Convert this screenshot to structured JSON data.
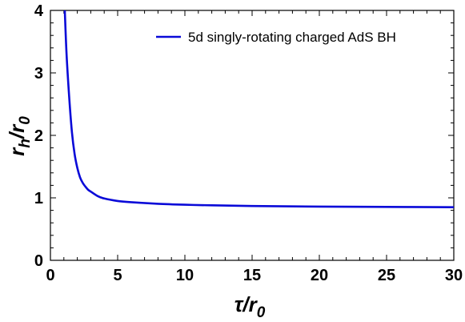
{
  "chart_data": {
    "type": "line",
    "title": "",
    "xlabel": {
      "main": "τ/r",
      "sub": "0"
    },
    "ylabel": {
      "main": "r",
      "sub1": "h",
      "mid": "/r",
      "sub2": "0"
    },
    "xlim": [
      0,
      30
    ],
    "ylim": [
      0,
      4
    ],
    "xticks": [
      0,
      5,
      10,
      15,
      20,
      25,
      30
    ],
    "yticks": [
      0,
      1,
      2,
      3,
      4
    ],
    "xtick_labels": [
      "0",
      "5",
      "10",
      "15",
      "20",
      "25",
      "30"
    ],
    "ytick_labels": [
      "0",
      "1",
      "2",
      "3",
      "4"
    ],
    "grid": false,
    "legend_position": "top-right",
    "series": [
      {
        "name": "5d singly-rotating charged AdS BH",
        "color": "#0a0ad8",
        "x": [
          1.06,
          1.2,
          1.4,
          1.6,
          1.8,
          2.0,
          2.2,
          2.4,
          2.6,
          2.8,
          3.0,
          3.5,
          4.0,
          5.0,
          6.0,
          8.0,
          10.0,
          12.0,
          15.0,
          20.0,
          25.0,
          30.0
        ],
        "y": [
          4.05,
          3.3,
          2.6,
          2.05,
          1.7,
          1.48,
          1.33,
          1.24,
          1.18,
          1.13,
          1.1,
          1.03,
          0.99,
          0.95,
          0.93,
          0.905,
          0.89,
          0.88,
          0.87,
          0.86,
          0.855,
          0.85
        ]
      }
    ]
  }
}
